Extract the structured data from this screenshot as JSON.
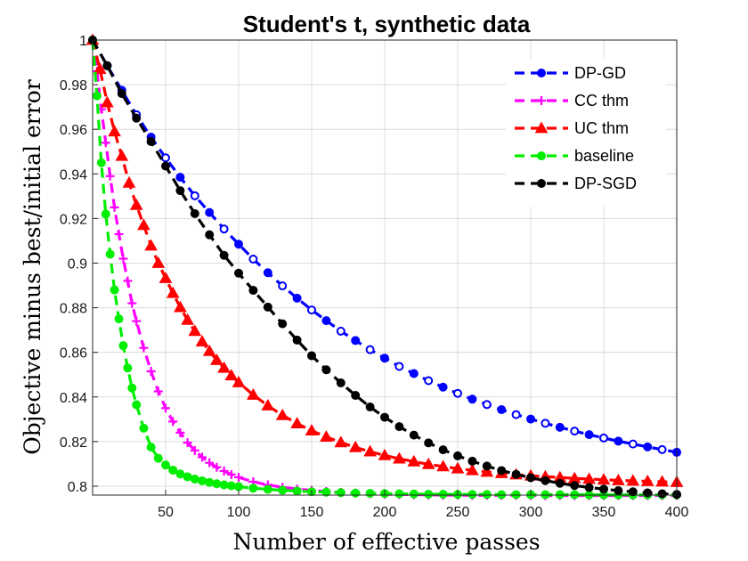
{
  "chart_data": {
    "type": "line",
    "title": "Student's t, synthetic data",
    "xlabel": "Number of effective passes",
    "ylabel": "Objective minus best/initial error",
    "xlim": [
      0,
      400
    ],
    "ylim": [
      0.796,
      1.0
    ],
    "xticks": [
      50,
      100,
      150,
      200,
      250,
      300,
      350,
      400
    ],
    "yticks": [
      0.8,
      0.82,
      0.84,
      0.86,
      0.88,
      0.9,
      0.92,
      0.94,
      0.96,
      0.98,
      1
    ],
    "xtick_labels": [
      "50",
      "100",
      "150",
      "200",
      "250",
      "300",
      "350",
      "400"
    ],
    "ytick_labels": [
      "0.8",
      "0.82",
      "0.84",
      "0.86",
      "0.88",
      "0.9",
      "0.92",
      "0.94",
      "0.96",
      "0.98",
      "1"
    ],
    "grid": true,
    "legend_position": "top-right",
    "series": [
      {
        "name": "DP-GD",
        "color": "#0000ff",
        "marker": "circle",
        "x": [
          0,
          10,
          20,
          30,
          40,
          50,
          60,
          70,
          80,
          90,
          100,
          110,
          120,
          130,
          140,
          150,
          160,
          170,
          180,
          190,
          200,
          210,
          220,
          230,
          240,
          250,
          260,
          270,
          280,
          290,
          300,
          310,
          320,
          330,
          340,
          350,
          360,
          370,
          380,
          390,
          400
        ],
        "y": [
          1.0,
          0.9885,
          0.9775,
          0.9665,
          0.9565,
          0.9472,
          0.9385,
          0.9302,
          0.9227,
          0.9153,
          0.9085,
          0.9018,
          0.8957,
          0.8898,
          0.8843,
          0.879,
          0.8742,
          0.8695,
          0.8653,
          0.8612,
          0.8574,
          0.8537,
          0.8505,
          0.8473,
          0.8444,
          0.8416,
          0.839,
          0.8366,
          0.8343,
          0.8321,
          0.8301,
          0.8282,
          0.8264,
          0.8247,
          0.8231,
          0.8216,
          0.8202,
          0.8189,
          0.8176,
          0.8164,
          0.8152
        ]
      },
      {
        "name": "CC thm",
        "color": "#ff00ff",
        "marker": "plus",
        "x": [
          0,
          3,
          6,
          9,
          12,
          15,
          18,
          21,
          24,
          27,
          30,
          35,
          40,
          45,
          50,
          55,
          60,
          65,
          70,
          75,
          80,
          85,
          90,
          95,
          100,
          110,
          120,
          130,
          140,
          150,
          160,
          170,
          180,
          190,
          200,
          210,
          220,
          230,
          240,
          250,
          260,
          270,
          280,
          290,
          300,
          310,
          320,
          330,
          340,
          350,
          360,
          370,
          380,
          390,
          400
        ],
        "y": [
          1.0,
          0.986,
          0.969,
          0.954,
          0.939,
          0.925,
          0.913,
          0.902,
          0.892,
          0.882,
          0.874,
          0.862,
          0.8515,
          0.8425,
          0.835,
          0.829,
          0.824,
          0.8195,
          0.816,
          0.813,
          0.8105,
          0.8085,
          0.8068,
          0.8052,
          0.804,
          0.802,
          0.8006,
          0.7995,
          0.7987,
          0.7981,
          0.7976,
          0.7972,
          0.7969,
          0.7966,
          0.7964,
          0.7963,
          0.7962,
          0.7961,
          0.796,
          0.796,
          0.7959,
          0.7959,
          0.7959,
          0.7959,
          0.7958,
          0.7958,
          0.7958,
          0.7958,
          0.7958,
          0.7958,
          0.7958,
          0.7958,
          0.7958,
          0.7958,
          0.7958
        ]
      },
      {
        "name": "UC thm",
        "color": "#ff0000",
        "marker": "triangle",
        "x": [
          0,
          5,
          10,
          15,
          20,
          25,
          30,
          35,
          40,
          45,
          50,
          55,
          60,
          65,
          70,
          75,
          80,
          85,
          90,
          95,
          100,
          110,
          120,
          130,
          140,
          150,
          160,
          170,
          180,
          190,
          200,
          210,
          220,
          230,
          240,
          250,
          260,
          270,
          280,
          290,
          300,
          310,
          320,
          330,
          340,
          350,
          360,
          370,
          380,
          390,
          400
        ],
        "y": [
          1.0,
          0.987,
          0.972,
          0.959,
          0.948,
          0.936,
          0.926,
          0.917,
          0.9078,
          0.9,
          0.8932,
          0.8865,
          0.8802,
          0.8745,
          0.8695,
          0.8648,
          0.8605,
          0.8565,
          0.853,
          0.8496,
          0.8465,
          0.8409,
          0.8361,
          0.8318,
          0.8281,
          0.8249,
          0.8221,
          0.8196,
          0.8174,
          0.8155,
          0.8138,
          0.8123,
          0.811,
          0.8098,
          0.8088,
          0.8079,
          0.8071,
          0.8064,
          0.8058,
          0.8052,
          0.8047,
          0.8043,
          0.8039,
          0.8035,
          0.8032,
          0.8029,
          0.8026,
          0.8024,
          0.8022,
          0.802,
          0.8018
        ]
      },
      {
        "name": "baseline",
        "color": "#00ee00",
        "marker": "circle",
        "x": [
          0,
          3,
          6,
          9,
          12,
          15,
          18,
          21,
          24,
          27,
          30,
          35,
          40,
          45,
          50,
          55,
          60,
          65,
          70,
          75,
          80,
          85,
          90,
          95,
          100,
          110,
          120,
          130,
          140,
          150,
          160,
          170,
          180,
          190,
          200,
          210,
          220,
          230,
          240,
          250,
          260,
          270,
          280,
          290,
          300,
          310,
          320,
          330,
          340,
          350,
          360,
          370,
          380,
          390,
          400
        ],
        "y": [
          1.0,
          0.975,
          0.945,
          0.922,
          0.904,
          0.888,
          0.875,
          0.863,
          0.853,
          0.844,
          0.8365,
          0.826,
          0.8175,
          0.8125,
          0.8095,
          0.8072,
          0.8055,
          0.8042,
          0.8032,
          0.8024,
          0.8017,
          0.8011,
          0.8006,
          0.8002,
          0.7998,
          0.7991,
          0.7986,
          0.7982,
          0.7978,
          0.7975,
          0.7973,
          0.7971,
          0.7969,
          0.7968,
          0.7967,
          0.7966,
          0.7965,
          0.7964,
          0.7964,
          0.7963,
          0.7963,
          0.7963,
          0.7962,
          0.7962,
          0.7962,
          0.7962,
          0.7962,
          0.7962,
          0.7961,
          0.7961,
          0.7961,
          0.7961,
          0.7961,
          0.7961,
          0.7961
        ]
      },
      {
        "name": "DP-SGD",
        "color": "#000000",
        "marker": "circle",
        "x": [
          0,
          10,
          20,
          30,
          40,
          50,
          60,
          70,
          80,
          90,
          100,
          110,
          120,
          130,
          140,
          150,
          160,
          170,
          180,
          190,
          200,
          210,
          220,
          230,
          240,
          250,
          260,
          270,
          280,
          290,
          300,
          310,
          320,
          330,
          340,
          350,
          360,
          370,
          380,
          390,
          400
        ],
        "y": [
          1.0,
          0.9885,
          0.976,
          0.965,
          0.9545,
          0.9435,
          0.9325,
          0.9222,
          0.9127,
          0.9035,
          0.8955,
          0.8878,
          0.8803,
          0.8728,
          0.8655,
          0.8585,
          0.8522,
          0.8463,
          0.8407,
          0.8355,
          0.8309,
          0.8267,
          0.8229,
          0.8194,
          0.8163,
          0.8136,
          0.8112,
          0.809,
          0.807,
          0.8053,
          0.8038,
          0.8025,
          0.8013,
          0.8003,
          0.7994,
          0.7987,
          0.798,
          0.7975,
          0.797,
          0.7966,
          0.7963
        ]
      }
    ]
  }
}
